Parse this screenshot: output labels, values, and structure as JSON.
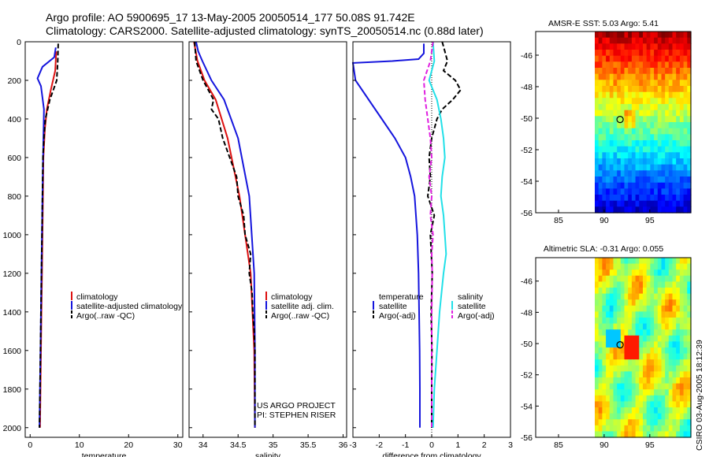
{
  "title_line1": "Argo profile: AO 5900695_17 13-May-2005 20050514_177 50.08S 91.742E",
  "title_line2": "Climatology: CARS2000. Satellite-adjusted climatology: synTS_20050514.nc (0.88d later)",
  "colors": {
    "red": "#dd1111",
    "blue": "#1515dd",
    "black": "#000000",
    "cyan": "#22e0e8",
    "magenta": "#e020e0"
  },
  "chart_data": [
    {
      "type": "line",
      "name": "temperature-panel",
      "xlabel": "temperature",
      "xlim": [
        -1,
        31
      ],
      "ylim": [
        0,
        2050
      ],
      "xticks": [
        0,
        10,
        20,
        30
      ],
      "yticks": [
        0,
        200,
        400,
        600,
        800,
        1000,
        1200,
        1400,
        1600,
        1800,
        2000
      ],
      "series": [
        {
          "name": "climatology",
          "color": "#dd1111",
          "style": "solid",
          "depth": [
            50,
            150,
            250,
            350,
            450,
            600,
            800,
            1000,
            1200,
            1400,
            1600,
            1800,
            2000
          ],
          "values": [
            5.3,
            5.1,
            4.2,
            3.4,
            3.0,
            2.7,
            2.6,
            2.5,
            2.4,
            2.3,
            2.2,
            2.1,
            2.0
          ]
        },
        {
          "name": "satellite-adjusted climatology",
          "color": "#1515dd",
          "style": "solid",
          "depth": [
            30,
            80,
            130,
            190,
            230,
            350,
            500,
            800,
            1200,
            1600,
            2000
          ],
          "values": [
            5.2,
            4.9,
            2.5,
            1.5,
            2.2,
            2.8,
            2.7,
            2.5,
            2.3,
            2.1,
            1.9
          ]
        },
        {
          "name": "Argo(..raw -QC)",
          "color": "#000000",
          "style": "dashed",
          "depth": [
            10,
            100,
            200,
            300,
            400,
            500,
            600,
            800,
            1000,
            1200,
            1400,
            1600,
            1800,
            2000
          ],
          "values": [
            5.7,
            5.6,
            5.4,
            4.0,
            3.1,
            2.8,
            2.6,
            2.5,
            2.4,
            2.3,
            2.2,
            2.1,
            2.0,
            1.9
          ]
        }
      ],
      "legend": [
        "climatology",
        "satellite-adjusted climatology",
        "Argo(..raw -QC)"
      ]
    },
    {
      "type": "line",
      "name": "salinity-panel",
      "xlabel": "salinity",
      "xlim": [
        33.8,
        36.05
      ],
      "ylim": [
        0,
        2050
      ],
      "xticks": [
        34,
        34.5,
        35,
        35.5,
        36
      ],
      "series": [
        {
          "name": "climatology",
          "color": "#dd1111",
          "style": "solid",
          "depth": [
            0,
            100,
            200,
            300,
            500,
            800,
            1200,
            1600,
            2000
          ],
          "values": [
            33.87,
            33.92,
            34.02,
            34.18,
            34.35,
            34.52,
            34.68,
            34.73,
            34.74
          ]
        },
        {
          "name": "satellite adj. clim.",
          "color": "#1515dd",
          "style": "solid",
          "depth": [
            0,
            50,
            100,
            200,
            300,
            500,
            800,
            1200,
            1600,
            2000
          ],
          "values": [
            33.9,
            33.93,
            33.99,
            34.12,
            34.3,
            34.5,
            34.66,
            34.73,
            34.74,
            34.74
          ]
        },
        {
          "name": "Argo(..raw -QC)",
          "color": "#000000",
          "style": "dashed",
          "depth": [
            0,
            100,
            200,
            300,
            350,
            400,
            450,
            500,
            600,
            700,
            800,
            900,
            1000,
            1100,
            1200,
            1300,
            1400,
            1500,
            1600,
            1800,
            2000
          ],
          "values": [
            33.88,
            33.9,
            34.0,
            34.15,
            34.12,
            34.22,
            34.25,
            34.28,
            34.38,
            34.48,
            34.5,
            34.58,
            34.6,
            34.68,
            34.66,
            34.7,
            34.71,
            34.73,
            34.74,
            34.74,
            34.74
          ]
        }
      ],
      "legend": [
        "climatology",
        "satellite adj. clim.",
        "Argo(..raw -QC)"
      ],
      "annotations": [
        "US ARGO PROJECT",
        "PI: STEPHEN RISER"
      ]
    },
    {
      "type": "line",
      "name": "difference-panel",
      "xlabel": "difference from climatology",
      "xlim": [
        -3,
        3
      ],
      "ylim": [
        0,
        2050
      ],
      "xticks": [
        -3,
        -2,
        -1,
        0,
        1,
        2,
        3
      ],
      "series": [
        {
          "name": "temperature satellite",
          "color": "#1515dd",
          "style": "solid",
          "depth": [
            10,
            60,
            90,
            100,
            110,
            200,
            300,
            400,
            500,
            600,
            700,
            800,
            900,
            1000,
            1200,
            1400,
            1600,
            1800,
            2000
          ],
          "values": [
            -0.3,
            -0.3,
            -0.5,
            -1.5,
            -3,
            -2.9,
            -2.4,
            -1.9,
            -1.4,
            -1.0,
            -0.8,
            -0.65,
            -0.6,
            -0.55,
            -0.5,
            -0.48,
            -0.46,
            -0.45,
            -0.45
          ]
        },
        {
          "name": "temperature Argo(-adj)",
          "color": "#000000",
          "style": "dashed",
          "depth": [
            0,
            50,
            100,
            150,
            200,
            250,
            300,
            350,
            400,
            500,
            600,
            700,
            800,
            900,
            1000,
            1200,
            1400,
            1600,
            1800,
            2000
          ],
          "values": [
            0.4,
            0.5,
            0.6,
            0.45,
            0.9,
            1.1,
            0.8,
            0.4,
            0.2,
            0.0,
            -0.1,
            -0.05,
            -0.15,
            0.1,
            -0.05,
            0.02,
            -0.02,
            0.01,
            0.0,
            0.0
          ]
        },
        {
          "name": "salinity satellite",
          "color": "#22e0e8",
          "style": "solid",
          "depth": [
            0,
            100,
            200,
            300,
            400,
            500,
            600,
            700,
            800,
            900,
            1000,
            1100,
            1200,
            1400,
            1600,
            1800,
            2000
          ],
          "values": [
            0.05,
            0.1,
            -0.1,
            0.2,
            0.35,
            0.45,
            0.5,
            0.4,
            0.35,
            0.45,
            0.5,
            0.55,
            0.45,
            0.3,
            0.2,
            0.1,
            0.05
          ]
        },
        {
          "name": "salinity Argo(-adj)",
          "color": "#e020e0",
          "style": "dashed",
          "depth": [
            0,
            100,
            200,
            300,
            400,
            500,
            600,
            700,
            800,
            900,
            1000,
            1100,
            1200,
            1400,
            1600,
            1800,
            2000
          ],
          "values": [
            0.05,
            -0.05,
            -0.3,
            -0.25,
            -0.15,
            -0.05,
            0.0,
            -0.1,
            0.0,
            -0.05,
            0.05,
            0.0,
            0.02,
            0.0,
            0.0,
            0.0,
            0.0
          ]
        }
      ],
      "legend": [
        "temperature",
        "satellite",
        "Argo(-adj)",
        "salinity",
        "satellite",
        "Argo(-adj)"
      ]
    },
    {
      "type": "heatmap",
      "name": "sst-map",
      "title": "AMSR-E SST: 5.03 Argo: 5.41",
      "xticks": [
        85,
        90,
        95
      ],
      "yticks": [
        -46,
        -48,
        -50,
        -52,
        -54,
        -56
      ],
      "float_position": {
        "lon": 91.742,
        "lat": -50.08
      }
    },
    {
      "type": "heatmap",
      "name": "sla-map",
      "title": "Altimetric SLA: -0.31 Argo: 0.055",
      "xticks": [
        85,
        90,
        95
      ],
      "yticks": [
        -46,
        -48,
        -50,
        -52,
        -54,
        -56
      ],
      "float_position": {
        "lon": 91.742,
        "lat": -50.08
      }
    }
  ],
  "credit": "CSIRO 03-Aug-2005 18:12:39"
}
